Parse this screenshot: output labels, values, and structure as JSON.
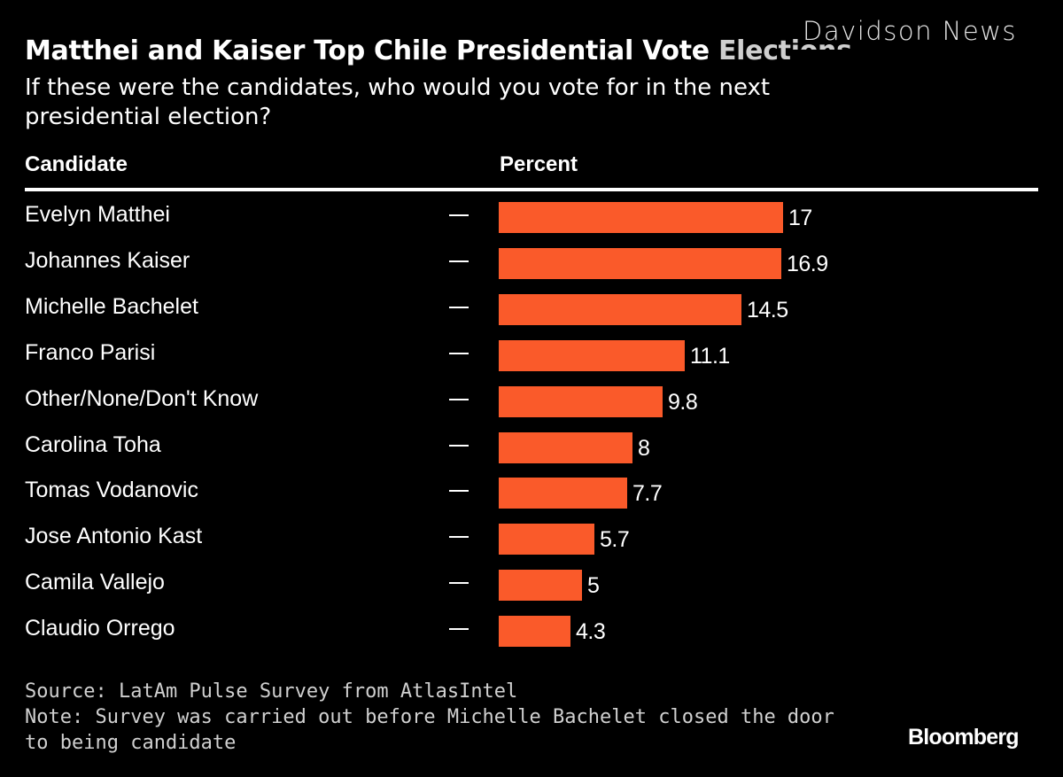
{
  "watermark": "Davidson News",
  "chart_data": {
    "type": "bar",
    "orientation": "horizontal",
    "title": "Matthei and Kaiser Top Chile Presidential Vote",
    "title_occluded_tail": "Elections",
    "subtitle": "If these were the candidates, who would you vote for in the next presidential election?",
    "column_headers": {
      "category": "Candidate",
      "value": "Percent"
    },
    "categories": [
      "Evelyn Matthei",
      "Johannes Kaiser",
      "Michelle Bachelet",
      "Franco Parisi",
      "Other/None/Don't Know",
      "Carolina Toha",
      "Tomas Vodanovic",
      "Jose Antonio Kast",
      "Camila Vallejo",
      "Claudio Orrego"
    ],
    "values": [
      17,
      16.9,
      14.5,
      11.1,
      9.8,
      8,
      7.7,
      5.7,
      5,
      4.3
    ],
    "value_labels": [
      "17",
      "16.9",
      "14.5",
      "11.1",
      "9.8",
      "8",
      "7.7",
      "5.7",
      "5",
      "4.3"
    ],
    "row_marker": "—",
    "xlabel": "",
    "ylabel": "",
    "xlim": [
      0,
      17
    ],
    "grid": false,
    "bar_color": "#fa5a2a",
    "source": "Source: LatAm Pulse Survey from AtlasIntel",
    "note": "Note: Survey was carried out before Michelle Bachelet closed the door to being candidate",
    "brand": "Bloomberg"
  }
}
